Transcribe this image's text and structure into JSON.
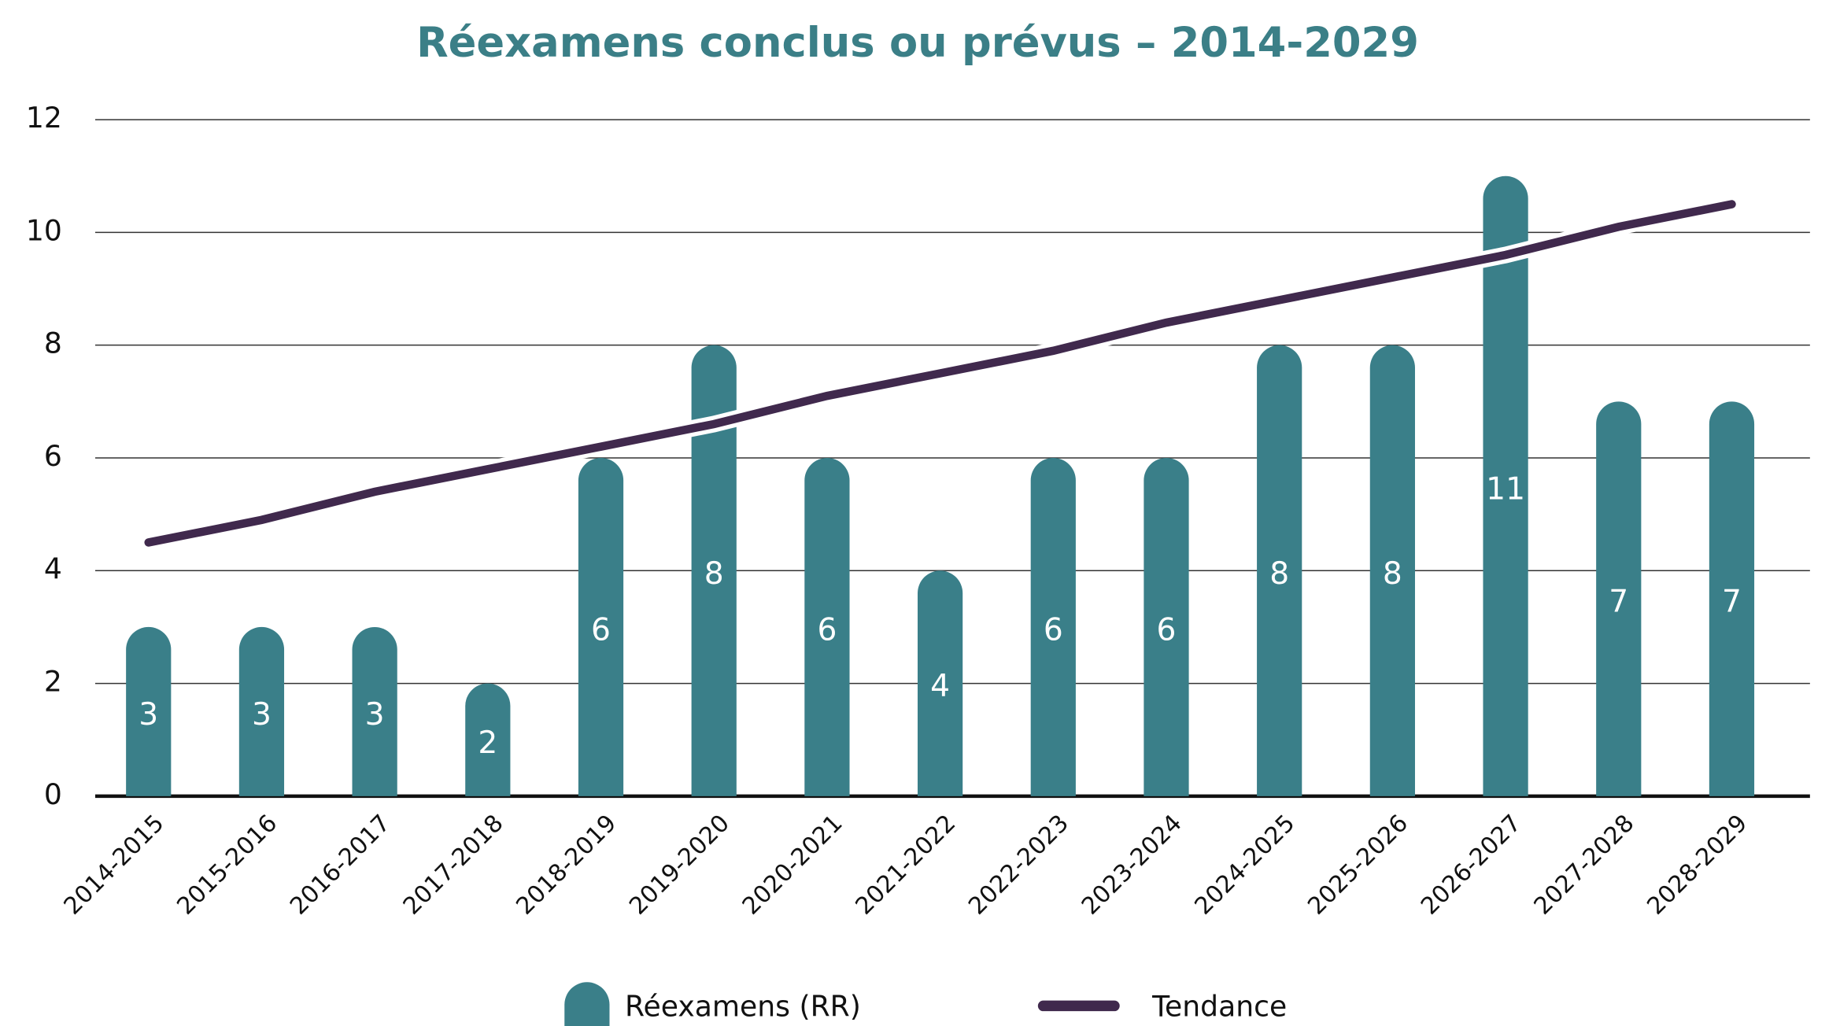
{
  "chart_data": {
    "type": "bar",
    "title": "Réexamens conclus ou prévus – 2014-2029",
    "categories": [
      "2014-2015",
      "2015-2016",
      "2016-2017",
      "2017-2018",
      "2018-2019",
      "2019-2020",
      "2020-2021",
      "2021-2022",
      "2022-2023",
      "2023-2024",
      "2024-2025",
      "2025-2026",
      "2026-2027",
      "2027-2028",
      "2028-2029"
    ],
    "series": [
      {
        "name": "Réexamens (RR)",
        "type": "bar",
        "color": "#3a7f89",
        "values": [
          3,
          3,
          3,
          2,
          6,
          8,
          6,
          4,
          6,
          6,
          8,
          8,
          11,
          7,
          7
        ]
      },
      {
        "name": "Tendance",
        "type": "line",
        "color": "#40294d",
        "values": [
          4.5,
          4.9,
          5.4,
          5.8,
          6.2,
          6.6,
          7.1,
          7.5,
          7.9,
          8.4,
          8.8,
          9.2,
          9.6,
          10.1,
          10.5
        ]
      }
    ],
    "ylim": [
      0,
      12
    ],
    "yticks": [
      0,
      2,
      4,
      6,
      8,
      10,
      12
    ],
    "grid": true,
    "legend": "bottom"
  }
}
